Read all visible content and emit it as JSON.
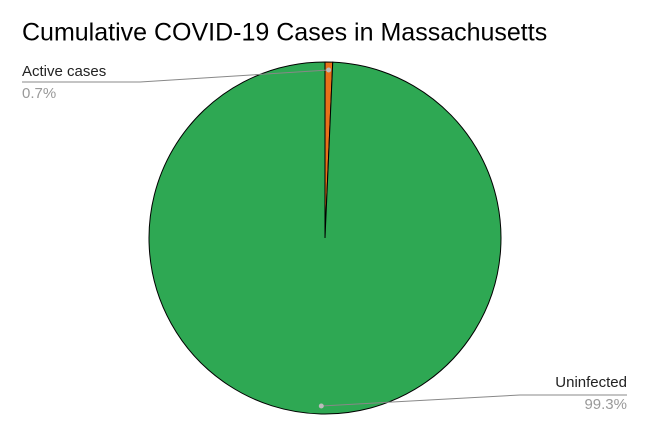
{
  "chart_data": {
    "type": "pie",
    "title": "Cumulative COVID-19 Cases in Massachusetts",
    "categories": [
      "Active cases",
      "Uninfected"
    ],
    "values": [
      0.7,
      99.3
    ],
    "value_labels": [
      "0.7%",
      "99.3%"
    ],
    "colors": [
      "#e8711a",
      "#2ea853"
    ]
  }
}
